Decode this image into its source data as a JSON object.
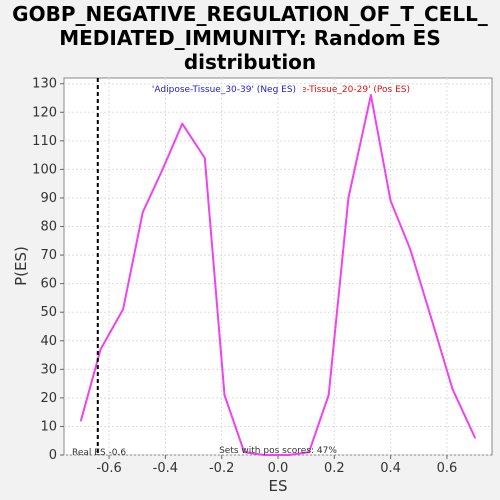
{
  "chart_data": {
    "type": "line",
    "title_lines": [
      "GOBP_NEGATIVE_REGULATION_OF_T_CELL_",
      "MEDIATED_IMMUNITY: Random ES",
      "distribution"
    ],
    "xlabel": "ES",
    "ylabel": "P(ES)",
    "xlim": [
      -0.76,
      0.76
    ],
    "ylim": [
      0,
      132
    ],
    "x_ticks": [
      -0.6,
      -0.4,
      -0.2,
      0.0,
      0.2,
      0.4,
      0.6
    ],
    "x_tick_labels": [
      "-0.6",
      "-0.4",
      "-0.2",
      "0.0",
      "0.2",
      "0.4",
      "0.6"
    ],
    "y_ticks": [
      0,
      10,
      20,
      30,
      40,
      50,
      60,
      70,
      80,
      90,
      100,
      110,
      120,
      130
    ],
    "y_tick_labels": [
      "0",
      "10",
      "20",
      "30",
      "40",
      "50",
      "60",
      "70",
      "80",
      "90",
      "100",
      "110",
      "120",
      "130"
    ],
    "grid": true,
    "series": [
      {
        "color": "#ee44ee",
        "x": [
          -0.7,
          -0.63,
          -0.55,
          -0.48,
          -0.41,
          -0.34,
          -0.26,
          -0.19,
          -0.12,
          -0.05,
          0.04,
          0.11,
          0.18,
          0.25,
          0.33,
          0.4,
          0.47,
          0.55,
          0.62,
          0.7
        ],
        "y": [
          12,
          37,
          51,
          85,
          100,
          116,
          104,
          21,
          1,
          0,
          0,
          1,
          21,
          90,
          126,
          89,
          72,
          46,
          23,
          6
        ]
      }
    ],
    "real_es": -0.64,
    "annotations": {
      "neg_label": "'Adipose-Tissue_30-39' (Neg ES)",
      "pos_label": "'Adipose-Tissue_20-29' (Pos ES)",
      "real_es_label": "Real ES -0.6",
      "pos_scores_label": "Sets with pos scores: 47%"
    },
    "colors": {
      "line": "#ee44ee",
      "neg_label": "#2222cc",
      "pos_label": "#dd1111",
      "grid": "#dddddd"
    }
  }
}
